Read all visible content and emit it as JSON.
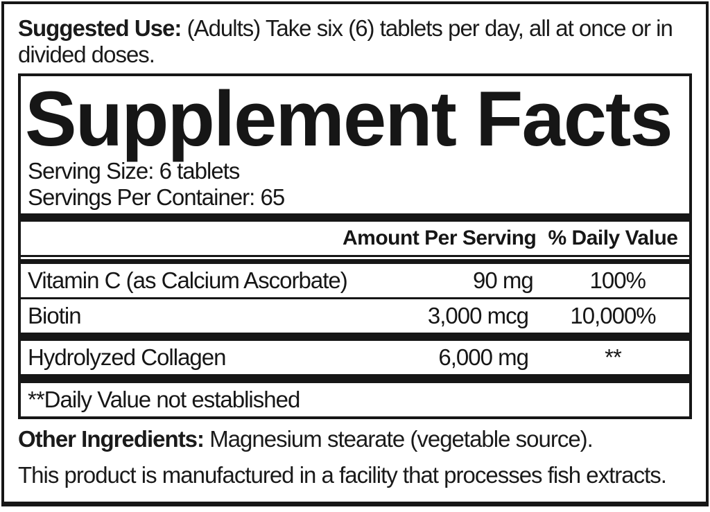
{
  "suggested_use": {
    "label": "Suggested Use:",
    "line1": "(Adults) Take six (6) tablets per day, all at once or in",
    "line2": "divided doses."
  },
  "panel": {
    "title": "Supplement Facts",
    "serving_size": "Serving Size: 6 tablets",
    "servings_per_container": "Servings Per Container: 65",
    "columns": {
      "amount": "Amount Per Serving",
      "dv": "% Daily Value"
    },
    "rows": [
      {
        "name": "Vitamin C (as Calcium Ascorbate)",
        "amount": "90 mg",
        "dv": "100%"
      },
      {
        "name": "Biotin",
        "amount": "3,000 mcg",
        "dv": "10,000%"
      },
      {
        "name": "Hydrolyzed Collagen",
        "amount": "6,000 mg",
        "dv": "**"
      }
    ],
    "footnote": "**Daily Value not established"
  },
  "other_ingredients": {
    "label": "Other Ingredients:",
    "text": "Magnesium stearate (vegetable source)."
  },
  "allergen_notice": "This product is manufactured in a facility that processes fish extracts.",
  "colors": {
    "ink": "#161616",
    "background": "#ffffff"
  }
}
